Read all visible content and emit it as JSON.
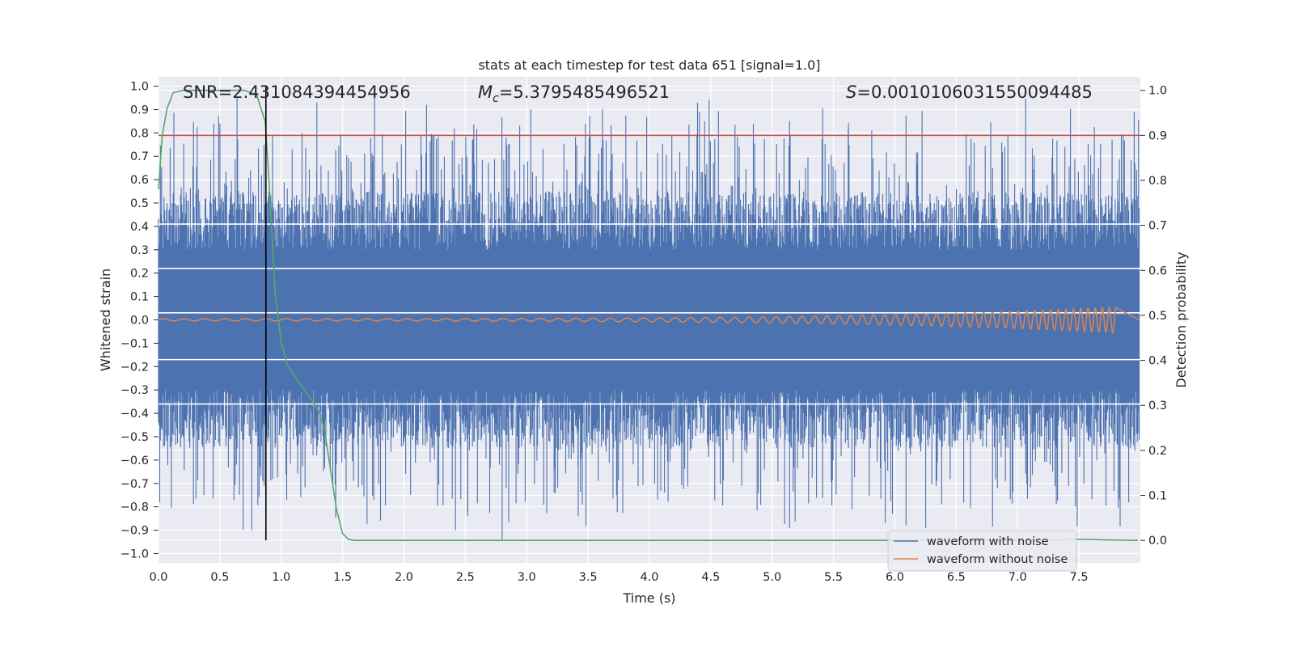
{
  "chart_data": {
    "type": "line",
    "title": "stats at each timestep for test data 651 [signal=1.0]",
    "xlabel": "Time (s)",
    "ylabel": "Whitened strain",
    "y2label": "Detection probability",
    "xlim": [
      0.0,
      8.0
    ],
    "ylim": [
      -1.04,
      1.04
    ],
    "y2lim": [
      -0.05,
      1.03
    ],
    "x_ticks": [
      "0.0",
      "0.5",
      "1.0",
      "1.5",
      "2.0",
      "2.5",
      "3.0",
      "3.5",
      "4.0",
      "4.5",
      "5.0",
      "5.5",
      "6.0",
      "6.5",
      "7.0",
      "7.5"
    ],
    "y_ticks": [
      "1.0",
      "0.9",
      "0.8",
      "0.7",
      "0.6",
      "0.5",
      "0.4",
      "0.3",
      "0.2",
      "0.1",
      "0.0",
      "−0.1",
      "−0.2",
      "−0.3",
      "−0.4",
      "−0.5",
      "−0.6",
      "−0.7",
      "−0.8",
      "−0.9",
      "−1.0"
    ],
    "y2_ticks": [
      "1.0",
      "0.9",
      "0.8",
      "0.7",
      "0.6",
      "0.5",
      "0.4",
      "0.3",
      "0.2",
      "0.1",
      "0.0"
    ],
    "grid": true,
    "legend_position": "lower-right",
    "annotations": {
      "snr": "SNR=2.431084394454956",
      "mc_symbol": "M",
      "mc_sub": "c",
      "mc_value": "=5.3795485496521",
      "s_symbol": "S",
      "s_value": "=0.0010106031550094485"
    },
    "threshold_y2": 0.9,
    "marker_x": 0.875,
    "series": [
      {
        "name": "waveform with noise",
        "color": "#4c72b0",
        "kind": "noise",
        "envelope_upper": 0.3,
        "envelope_lower": -0.3,
        "peak_max": 1.0,
        "peak_min": -0.94
      },
      {
        "name": "waveform without noise",
        "color": "#dd8452",
        "kind": "chirp",
        "amplitude_start": 0.005,
        "amplitude_end": 0.055,
        "end_x": 7.8
      },
      {
        "name": "detection probability",
        "color": "#55a868",
        "axis": "right",
        "x": [
          0.0,
          0.03,
          0.07,
          0.12,
          0.2,
          0.3,
          0.5,
          0.7,
          0.8,
          0.87,
          0.9,
          0.95,
          1.0,
          1.05,
          1.1,
          1.2,
          1.3,
          1.35,
          1.4,
          1.45,
          1.5,
          1.55,
          1.6,
          2.0,
          3.0,
          4.0,
          5.0,
          6.0,
          7.0,
          7.5,
          7.6,
          7.7,
          7.98
        ],
        "y": [
          0.78,
          0.9,
          0.96,
          0.995,
          1.0,
          1.0,
          1.0,
          1.0,
          0.99,
          0.93,
          0.8,
          0.55,
          0.44,
          0.39,
          0.37,
          0.33,
          0.29,
          0.25,
          0.16,
          0.07,
          0.015,
          0.002,
          0.0,
          0.0,
          0.0,
          0.0,
          0.0,
          0.0,
          0.0,
          0.002,
          0.002,
          0.001,
          0.0
        ]
      }
    ],
    "colors": {
      "background": "#eaeaf2",
      "grid": "#ffffff",
      "threshold": "#c44e52",
      "marker": "#000000"
    }
  }
}
